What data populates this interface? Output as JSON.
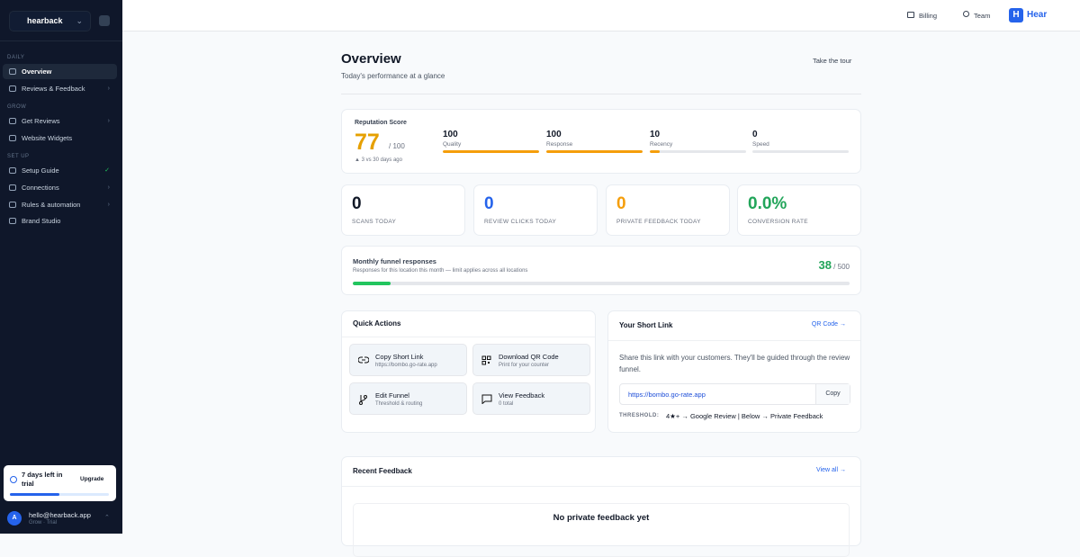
{
  "sidebar": {
    "workspace": "hearback",
    "sections": [
      {
        "label": "DAILY",
        "items": [
          "Overview",
          "Reviews & Feedback"
        ]
      },
      {
        "label": "GROW",
        "items": [
          "Get Reviews",
          "Website Widgets"
        ]
      },
      {
        "label": "SET UP",
        "items": [
          "Setup Guide",
          "Connections",
          "Rules & automation",
          "Brand Studio"
        ]
      }
    ],
    "trial": {
      "text": "7 days left in trial",
      "button": "Upgrade"
    },
    "user": {
      "avatar": "A",
      "email": "hello@hearback.app",
      "plan": "Grow · Trial"
    }
  },
  "topbar": {
    "billing": "Billing",
    "team": "Team",
    "logo": "Hear"
  },
  "header": {
    "title": "Overview",
    "subtitle": "Today's performance at a glance",
    "tour": "Take the tour"
  },
  "reputation": {
    "label": "Reputation Score",
    "score": 77,
    "separator": "/",
    "max": 100,
    "trend": "▲ 3 vs 30 days ago",
    "metrics": [
      {
        "value": 100,
        "label": "Quality"
      },
      {
        "value": 100,
        "label": "Response"
      },
      {
        "value": 10,
        "label": "Recency"
      },
      {
        "value": 0,
        "label": "Speed"
      }
    ]
  },
  "stats": [
    {
      "value": "0",
      "label": "SCANS TODAY"
    },
    {
      "value": "0",
      "label": "REVIEW CLICKS TODAY"
    },
    {
      "value": "0",
      "label": "PRIVATE FEEDBACK TODAY"
    },
    {
      "value": "0.0%",
      "label": "CONVERSION RATE"
    }
  ],
  "funnel": {
    "title": "Monthly funnel responses",
    "subtitle": "Responses for this location this month — limit applies across all locations",
    "used": 38,
    "separator": "/",
    "limit": 500
  },
  "quick_actions": {
    "title": "Quick Actions",
    "items": [
      {
        "title": "Copy Short Link",
        "subtitle": "https://bombo.go-rate.app"
      },
      {
        "title": "Download QR Code",
        "subtitle": "Print for your counter"
      },
      {
        "title": "Edit Funnel",
        "subtitle": "Threshold & routing"
      },
      {
        "title": "View Feedback",
        "subtitle": "0 total"
      }
    ]
  },
  "short_link": {
    "title": "Your Short Link",
    "qr": "QR Code →",
    "description": "Share this link with your customers. They'll be guided through the review funnel.",
    "url": "https://bombo.go-rate.app",
    "copy": "Copy",
    "threshold_label": "THRESHOLD:",
    "threshold": "4★+ → Google Review | Below → Private Feedback"
  },
  "recent_feedback": {
    "title": "Recent Feedback",
    "view_all": "View all →",
    "empty": "No private feedback yet"
  }
}
